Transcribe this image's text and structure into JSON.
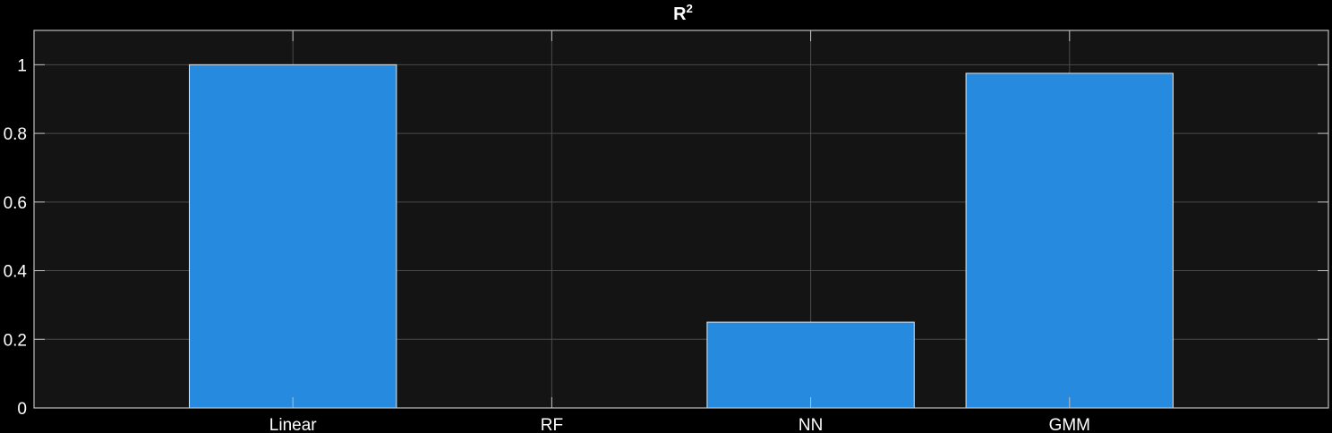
{
  "chart_data": {
    "type": "bar",
    "title": "R",
    "title_superscript": "2",
    "categories": [
      "Linear",
      "RF",
      "NN",
      "GMM"
    ],
    "values": [
      1.0,
      0.0,
      0.25,
      0.975
    ],
    "ylim": [
      0,
      1.1
    ],
    "x_range": [
      0,
      5
    ],
    "yticks": [
      "0",
      "0.2",
      "0.4",
      "0.6",
      "0.8",
      "1"
    ],
    "ytick_values": [
      0,
      0.2,
      0.4,
      0.6,
      0.8,
      1
    ],
    "grid": true,
    "xlabel": "",
    "ylabel": "",
    "colors": {
      "background": "#000000",
      "plot_area": "#141414",
      "bar_fill": "#268ade",
      "bar_edge": "#e6e6e6",
      "axis": "#bfbfbf",
      "grid": "#4a4a4a",
      "text": "#ffffff"
    }
  }
}
